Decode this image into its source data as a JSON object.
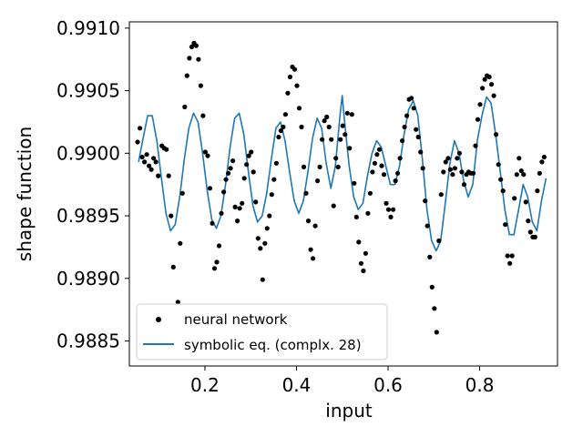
{
  "chart_data": {
    "type": "scatter",
    "title": "",
    "xlabel": "input",
    "ylabel": "shape function",
    "xlim": [
      0.035,
      0.97
    ],
    "ylim": [
      0.9883,
      0.99105
    ],
    "xticks": [
      0.2,
      0.4,
      0.6,
      0.8
    ],
    "xtick_labels": [
      "0.2",
      "0.4",
      "0.6",
      "0.8"
    ],
    "yticks": [
      0.9885,
      0.989,
      0.9895,
      0.99,
      0.9905,
      0.991
    ],
    "ytick_labels": [
      "0.9885",
      "0.9890",
      "0.9895",
      "0.9900",
      "0.9905",
      "0.9910"
    ],
    "grid": false,
    "legend_position": "lower-left",
    "series": [
      {
        "name": "neural network",
        "kind": "scatter",
        "color": "#000000",
        "points": [
          [
            0.053,
            0.99009
          ],
          [
            0.058,
            0.9902
          ],
          [
            0.063,
            0.98997
          ],
          [
            0.068,
            0.98993
          ],
          [
            0.073,
            0.98999
          ],
          [
            0.078,
            0.9899
          ],
          [
            0.083,
            0.98987
          ],
          [
            0.088,
            0.98996
          ],
          [
            0.093,
            0.98993
          ],
          [
            0.098,
            0.98982
          ],
          [
            0.106,
            0.99006
          ],
          [
            0.111,
            0.99004
          ],
          [
            0.116,
            0.99003
          ],
          [
            0.121,
            0.98982
          ],
          [
            0.126,
            0.9895
          ],
          [
            0.131,
            0.98909
          ],
          [
            0.141,
            0.98881
          ],
          [
            0.146,
            0.98928
          ],
          [
            0.151,
            0.98968
          ],
          [
            0.156,
            0.99037
          ],
          [
            0.161,
            0.99062
          ],
          [
            0.166,
            0.99076
          ],
          [
            0.171,
            0.99085
          ],
          [
            0.176,
            0.99088
          ],
          [
            0.181,
            0.99086
          ],
          [
            0.186,
            0.99075
          ],
          [
            0.191,
            0.99054
          ],
          [
            0.196,
            0.9903
          ],
          [
            0.201,
            0.99001
          ],
          [
            0.206,
            0.98998
          ],
          [
            0.211,
            0.98972
          ],
          [
            0.216,
            0.98944
          ],
          [
            0.221,
            0.98908
          ],
          [
            0.226,
            0.98913
          ],
          [
            0.231,
            0.98926
          ],
          [
            0.236,
            0.98952
          ],
          [
            0.241,
            0.98969
          ],
          [
            0.246,
            0.98979
          ],
          [
            0.251,
            0.98984
          ],
          [
            0.256,
            0.98988
          ],
          [
            0.261,
            0.98994
          ],
          [
            0.266,
            0.98957
          ],
          [
            0.271,
            0.98946
          ],
          [
            0.276,
            0.98956
          ],
          [
            0.281,
            0.9896
          ],
          [
            0.286,
            0.9898
          ],
          [
            0.291,
            0.98991
          ],
          [
            0.296,
            0.98998
          ],
          [
            0.301,
            0.99001
          ],
          [
            0.306,
            0.98985
          ],
          [
            0.311,
            0.98961
          ],
          [
            0.316,
            0.98932
          ],
          [
            0.321,
            0.98924
          ],
          [
            0.326,
            0.98899
          ],
          [
            0.331,
            0.98928
          ],
          [
            0.336,
            0.9894
          ],
          [
            0.341,
            0.9895
          ],
          [
            0.346,
            0.98967
          ],
          [
            0.351,
            0.98979
          ],
          [
            0.356,
            0.98992
          ],
          [
            0.361,
            0.99013
          ],
          [
            0.366,
            0.99018
          ],
          [
            0.371,
            0.99021
          ],
          [
            0.376,
            0.99031
          ],
          [
            0.381,
            0.99048
          ],
          [
            0.386,
            0.99061
          ],
          [
            0.391,
            0.99069
          ],
          [
            0.396,
            0.99067
          ],
          [
            0.401,
            0.99054
          ],
          [
            0.406,
            0.99036
          ],
          [
            0.411,
            0.99021
          ],
          [
            0.416,
            0.98989
          ],
          [
            0.421,
            0.98968
          ],
          [
            0.426,
            0.98946
          ],
          [
            0.431,
            0.98923
          ],
          [
            0.436,
            0.98916
          ],
          [
            0.441,
            0.98942
          ],
          [
            0.446,
            0.98978
          ],
          [
            0.451,
            0.98989
          ],
          [
            0.456,
            0.99011
          ],
          [
            0.461,
            0.99026
          ],
          [
            0.466,
            0.99029
          ],
          [
            0.471,
            0.99021
          ],
          [
            0.476,
            0.99011
          ],
          [
            0.481,
            0.98958
          ],
          [
            0.486,
            0.98996
          ],
          [
            0.491,
            0.98989
          ],
          [
            0.496,
            0.99011
          ],
          [
            0.501,
            0.99022
          ],
          [
            0.506,
            0.99015
          ],
          [
            0.511,
            0.99032
          ],
          [
            0.516,
            0.99004
          ],
          [
            0.521,
            0.99031
          ],
          [
            0.526,
            0.98976
          ],
          [
            0.531,
            0.98949
          ],
          [
            0.536,
            0.98929
          ],
          [
            0.541,
            0.98912
          ],
          [
            0.546,
            0.98906
          ],
          [
            0.551,
            0.9892
          ],
          [
            0.556,
            0.98952
          ],
          [
            0.561,
            0.98968
          ],
          [
            0.566,
            0.98985
          ],
          [
            0.571,
            0.98992
          ],
          [
            0.576,
            0.98999
          ],
          [
            0.581,
            0.99003
          ],
          [
            0.586,
            0.9899
          ],
          [
            0.591,
            0.98983
          ],
          [
            0.596,
            0.9896
          ],
          [
            0.601,
            0.98955
          ],
          [
            0.606,
            0.98949
          ],
          [
            0.611,
            0.98955
          ],
          [
            0.616,
            0.98978
          ],
          [
            0.621,
            0.98984
          ],
          [
            0.626,
            0.98996
          ],
          [
            0.631,
            0.9901
          ],
          [
            0.636,
            0.99021
          ],
          [
            0.641,
            0.9903
          ],
          [
            0.646,
            0.99043
          ],
          [
            0.651,
            0.99044
          ],
          [
            0.656,
            0.99036
          ],
          [
            0.661,
            0.99019
          ],
          [
            0.666,
            0.99013
          ],
          [
            0.671,
            0.99001
          ],
          [
            0.676,
            0.98988
          ],
          [
            0.681,
            0.98962
          ],
          [
            0.686,
            0.98942
          ],
          [
            0.691,
            0.98917
          ],
          [
            0.696,
            0.98893
          ],
          [
            0.701,
            0.98876
          ],
          [
            0.706,
            0.98857
          ],
          [
            0.711,
            0.9893
          ],
          [
            0.716,
            0.98967
          ],
          [
            0.721,
            0.98985
          ],
          [
            0.726,
            0.98993
          ],
          [
            0.731,
            0.98996
          ],
          [
            0.736,
            0.98987
          ],
          [
            0.741,
            0.98983
          ],
          [
            0.746,
            0.98988
          ],
          [
            0.751,
            0.98996
          ],
          [
            0.756,
            0.99
          ],
          [
            0.761,
            0.98985
          ],
          [
            0.766,
            0.98975
          ],
          [
            0.771,
            0.98983
          ],
          [
            0.776,
            0.98985
          ],
          [
            0.781,
            0.98984
          ],
          [
            0.786,
            0.98984
          ],
          [
            0.791,
            0.99006
          ],
          [
            0.796,
            0.99027
          ],
          [
            0.801,
            0.99039
          ],
          [
            0.806,
            0.99052
          ],
          [
            0.811,
            0.99059
          ],
          [
            0.816,
            0.99062
          ],
          [
            0.821,
            0.99061
          ],
          [
            0.826,
            0.99055
          ],
          [
            0.831,
            0.99046
          ],
          [
            0.836,
            0.99015
          ],
          [
            0.841,
            0.98991
          ],
          [
            0.846,
            0.98979
          ],
          [
            0.851,
            0.9897
          ],
          [
            0.856,
            0.98943
          ],
          [
            0.861,
            0.98918
          ],
          [
            0.866,
            0.98912
          ],
          [
            0.871,
            0.98918
          ],
          [
            0.876,
            0.98964
          ],
          [
            0.881,
            0.98983
          ],
          [
            0.886,
            0.98996
          ],
          [
            0.891,
            0.98986
          ],
          [
            0.896,
            0.98983
          ],
          [
            0.901,
            0.98961
          ],
          [
            0.906,
            0.98946
          ],
          [
            0.911,
            0.98937
          ],
          [
            0.916,
            0.98933
          ],
          [
            0.921,
            0.98933
          ],
          [
            0.926,
            0.9897
          ],
          [
            0.931,
            0.98984
          ],
          [
            0.936,
            0.98993
          ],
          [
            0.941,
            0.98997
          ]
        ]
      },
      {
        "name": "symbolic eq. (complx. 28)",
        "kind": "line",
        "color": "#1f77b4",
        "points": [
          [
            0.055,
            0.98993
          ],
          [
            0.065,
            0.99012
          ],
          [
            0.075,
            0.9903
          ],
          [
            0.085,
            0.9903
          ],
          [
            0.095,
            0.9901
          ],
          [
            0.105,
            0.9898
          ],
          [
            0.115,
            0.98952
          ],
          [
            0.125,
            0.98938
          ],
          [
            0.135,
            0.98943
          ],
          [
            0.145,
            0.98965
          ],
          [
            0.155,
            0.98995
          ],
          [
            0.165,
            0.9902
          ],
          [
            0.175,
            0.99032
          ],
          [
            0.185,
            0.99025
          ],
          [
            0.195,
            0.99
          ],
          [
            0.205,
            0.9897
          ],
          [
            0.215,
            0.98947
          ],
          [
            0.225,
            0.9894
          ],
          [
            0.235,
            0.9895
          ],
          [
            0.245,
            0.98975
          ],
          [
            0.255,
            0.99005
          ],
          [
            0.265,
            0.99028
          ],
          [
            0.275,
            0.99032
          ],
          [
            0.285,
            0.99015
          ],
          [
            0.295,
            0.98985
          ],
          [
            0.305,
            0.98958
          ],
          [
            0.315,
            0.98945
          ],
          [
            0.325,
            0.9895
          ],
          [
            0.335,
            0.98968
          ],
          [
            0.345,
            0.98995
          ],
          [
            0.355,
            0.9902
          ],
          [
            0.365,
            0.99025
          ],
          [
            0.375,
            0.9901
          ],
          [
            0.385,
            0.98985
          ],
          [
            0.395,
            0.98962
          ],
          [
            0.405,
            0.98952
          ],
          [
            0.415,
            0.98962
          ],
          [
            0.425,
            0.98985
          ],
          [
            0.435,
            0.99012
          ],
          [
            0.445,
            0.99028
          ],
          [
            0.455,
            0.9902
          ],
          [
            0.465,
            0.98992
          ],
          [
            0.475,
            0.98972
          ],
          [
            0.485,
            0.9899
          ],
          [
            0.495,
            0.9903
          ],
          [
            0.5,
            0.99046
          ],
          [
            0.505,
            0.99025
          ],
          [
            0.515,
            0.9899
          ],
          [
            0.525,
            0.98965
          ],
          [
            0.535,
            0.98955
          ],
          [
            0.545,
            0.9896
          ],
          [
            0.555,
            0.98982
          ],
          [
            0.565,
            0.99
          ],
          [
            0.575,
            0.9901
          ],
          [
            0.585,
            0.99005
          ],
          [
            0.595,
            0.9899
          ],
          [
            0.605,
            0.98975
          ],
          [
            0.615,
            0.98975
          ],
          [
            0.625,
            0.9899
          ],
          [
            0.635,
            0.99015
          ],
          [
            0.645,
            0.99035
          ],
          [
            0.655,
            0.99042
          ],
          [
            0.665,
            0.9903
          ],
          [
            0.675,
            0.98995
          ],
          [
            0.685,
            0.98955
          ],
          [
            0.695,
            0.9893
          ],
          [
            0.705,
            0.98922
          ],
          [
            0.715,
            0.9893
          ],
          [
            0.725,
            0.9896
          ],
          [
            0.735,
            0.98992
          ],
          [
            0.745,
            0.9901
          ],
          [
            0.755,
            0.99
          ],
          [
            0.765,
            0.98978
          ],
          [
            0.775,
            0.98965
          ],
          [
            0.785,
            0.98975
          ],
          [
            0.795,
            0.9901
          ],
          [
            0.805,
            0.9903
          ],
          [
            0.815,
            0.99045
          ],
          [
            0.825,
            0.9904
          ],
          [
            0.835,
            0.99015
          ],
          [
            0.845,
            0.98985
          ],
          [
            0.855,
            0.98955
          ],
          [
            0.865,
            0.98935
          ],
          [
            0.875,
            0.98935
          ],
          [
            0.885,
            0.98955
          ],
          [
            0.895,
            0.98975
          ],
          [
            0.905,
            0.98965
          ],
          [
            0.915,
            0.98945
          ],
          [
            0.925,
            0.98938
          ],
          [
            0.935,
            0.98962
          ],
          [
            0.945,
            0.9898
          ]
        ]
      }
    ]
  }
}
